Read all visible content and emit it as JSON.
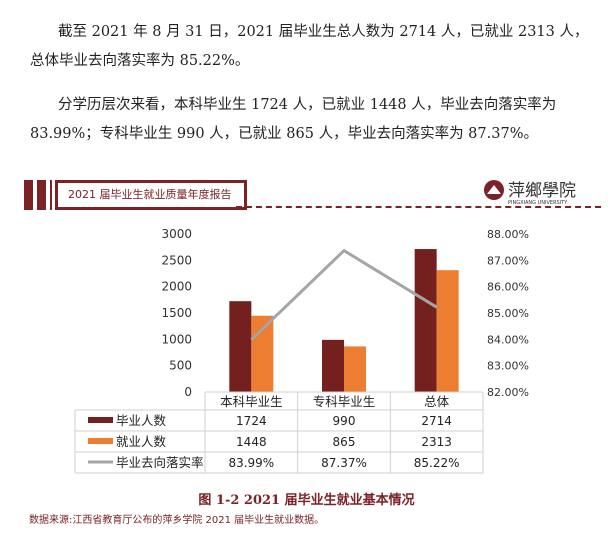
{
  "paragraphs": [
    "截至 2021 年 8 月 31 日，2021 届毕业生总人数为 2714 人，已就业 2313 人，",
    "总体毕业去向落实率为 85.22%。",
    "分学历层次来看，本科毕业生 1724 人，已就业 1448 人，毕业去向落实率为",
    "83.99%；专科毕业生 990 人，已就业 865 人，毕业去向落实率为 87.37%。"
  ],
  "header": {
    "report_title": "2021 届毕业生就业质量年度报告",
    "logo_text": "萍鄉學院",
    "logo_sub": "PINGXIANG UNIVERSITY"
  },
  "chart_data": {
    "type": "bar",
    "categories": [
      "本科毕业生",
      "专科毕业生",
      "总体"
    ],
    "series": [
      {
        "name": "毕业人数",
        "type": "bar",
        "axis": "left",
        "color": "#73201f",
        "values": [
          1724,
          990,
          2714
        ],
        "labels": [
          "1724",
          "990",
          "2714"
        ]
      },
      {
        "name": "就业人数",
        "type": "bar",
        "axis": "left",
        "color": "#ed7d31",
        "values": [
          1448,
          865,
          2313
        ],
        "labels": [
          "1448",
          "865",
          "2313"
        ]
      },
      {
        "name": "毕业去向落实率",
        "type": "line",
        "axis": "right",
        "color": "#a5a5a5",
        "values": [
          83.99,
          87.37,
          85.22
        ],
        "labels": [
          "83.99%",
          "87.37%",
          "85.22%"
        ]
      }
    ],
    "ylim": [
      0,
      3000
    ],
    "yticks": [
      "0",
      "500",
      "1000",
      "1500",
      "2000",
      "2500",
      "3000"
    ],
    "y2lim": [
      82,
      88
    ],
    "y2ticks": [
      "82.00%",
      "83.00%",
      "84.00%",
      "85.00%",
      "86.00%",
      "87.00%",
      "88.00%"
    ],
    "data_table": true
  },
  "caption": "图 1-2 2021 届毕业生就业基本情况",
  "source": "数据来源:江西省教育厅公布的萍乡学院 2021 届毕业生就业数据。"
}
